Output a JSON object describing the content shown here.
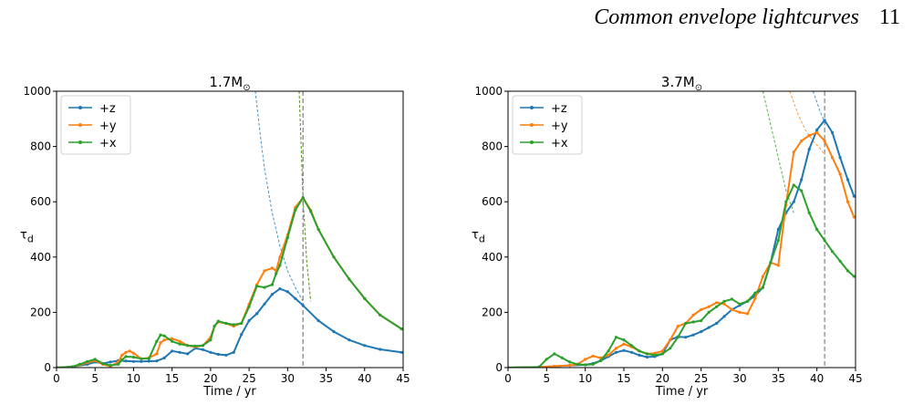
{
  "header": {
    "title": "Common envelope lightcurves",
    "page_number": "11"
  },
  "colors": {
    "+z": "#1f77b4",
    "+y": "#ff7f0e",
    "+x": "#2ca02c",
    "vline": "#808080"
  },
  "chart_data": [
    {
      "type": "line",
      "title": "1.7M",
      "title_subscript": "⊙",
      "xlabel": "Time / yr",
      "ylabel": "τ",
      "ylabel_subscript": "d",
      "xlim": [
        0,
        45
      ],
      "ylim": [
        0,
        1000
      ],
      "xticks": [
        0,
        5,
        10,
        15,
        20,
        25,
        30,
        35,
        40,
        45
      ],
      "yticks": [
        0,
        200,
        400,
        600,
        800,
        1000
      ],
      "legend": "top-left",
      "vline_x": 32,
      "series": [
        {
          "name": "+z",
          "x": [
            0,
            2,
            4,
            5,
            6,
            7,
            8,
            9,
            10,
            11,
            12,
            13,
            14,
            15,
            16,
            17,
            18,
            19,
            20,
            21,
            22,
            23,
            24,
            25,
            26,
            27,
            28,
            29,
            30,
            31,
            32,
            34,
            36,
            38,
            40,
            42,
            44.8
          ],
          "y": [
            0,
            3,
            12,
            20,
            15,
            20,
            25,
            24,
            22,
            22,
            23,
            24,
            35,
            60,
            55,
            50,
            70,
            65,
            55,
            48,
            45,
            55,
            120,
            170,
            195,
            230,
            265,
            285,
            275,
            250,
            225,
            170,
            130,
            100,
            80,
            66,
            55
          ]
        },
        {
          "name": "+y",
          "x": [
            0,
            2,
            3,
            4,
            5,
            6,
            7,
            8,
            8.5,
            9,
            9.5,
            10,
            11,
            12,
            13,
            13.5,
            14,
            15,
            16,
            17,
            18,
            19,
            20,
            20.5,
            21,
            22,
            23,
            24,
            25,
            26,
            27,
            28,
            28.5,
            29,
            30,
            31,
            32,
            33,
            34,
            36,
            38,
            40,
            42,
            44.8
          ],
          "y": [
            0,
            3,
            10,
            18,
            25,
            12,
            5,
            20,
            45,
            55,
            60,
            52,
            32,
            35,
            50,
            90,
            100,
            105,
            95,
            80,
            75,
            80,
            110,
            150,
            165,
            160,
            150,
            160,
            230,
            300,
            350,
            360,
            350,
            400,
            480,
            580,
            615,
            570,
            500,
            400,
            320,
            250,
            190,
            140
          ]
        },
        {
          "name": "+x",
          "x": [
            0,
            2,
            3,
            4,
            5,
            6,
            7,
            8,
            8.5,
            9,
            10,
            11,
            12,
            13,
            13.5,
            14,
            15,
            16,
            17,
            18,
            19,
            20,
            20.5,
            21,
            22,
            23,
            24,
            25,
            26,
            27,
            28,
            28.5,
            29,
            30,
            31,
            32,
            33,
            34,
            36,
            38,
            40,
            42,
            44.8
          ],
          "y": [
            0,
            3,
            12,
            22,
            30,
            15,
            8,
            12,
            28,
            40,
            38,
            32,
            33,
            95,
            118,
            115,
            95,
            85,
            80,
            78,
            80,
            100,
            150,
            168,
            160,
            155,
            160,
            220,
            295,
            290,
            300,
            340,
            370,
            470,
            570,
            615,
            565,
            500,
            400,
            320,
            250,
            190,
            140
          ]
        }
      ],
      "dashed_curves": [
        {
          "name": "+z",
          "x": [
            25.8,
            26.5,
            27,
            28,
            29,
            30,
            31,
            32
          ],
          "y": [
            1000,
            830,
            720,
            560,
            440,
            350,
            290,
            240
          ]
        },
        {
          "name": "+y",
          "x": [
            31.5,
            32,
            32.5,
            33
          ],
          "y": [
            1000,
            615,
            380,
            240
          ]
        },
        {
          "name": "+x",
          "x": [
            31.5,
            32,
            32.5,
            33
          ],
          "y": [
            1000,
            615,
            380,
            240
          ]
        }
      ]
    },
    {
      "type": "line",
      "title": "3.7M",
      "title_subscript": "⊙",
      "xlabel": "Time / yr",
      "ylabel": "τ",
      "ylabel_subscript": "d",
      "xlim": [
        0,
        45
      ],
      "ylim": [
        0,
        1000
      ],
      "xticks": [
        0,
        5,
        10,
        15,
        20,
        25,
        30,
        35,
        40,
        45
      ],
      "yticks": [
        0,
        200,
        400,
        600,
        800,
        1000
      ],
      "legend": "top-left",
      "vline_x": 41,
      "series": [
        {
          "name": "+z",
          "x": [
            0,
            4,
            6,
            8,
            10,
            11,
            12,
            13,
            14,
            15,
            16,
            17,
            18,
            19,
            20,
            21,
            22,
            23,
            24,
            25,
            26,
            27,
            28,
            29,
            30,
            31,
            32,
            33,
            34,
            35,
            36,
            37,
            38,
            39,
            40,
            41,
            42,
            43,
            44,
            44.8
          ],
          "y": [
            0,
            2,
            5,
            8,
            10,
            15,
            25,
            40,
            55,
            62,
            55,
            45,
            38,
            40,
            50,
            100,
            112,
            110,
            118,
            130,
            145,
            160,
            185,
            210,
            225,
            240,
            260,
            290,
            380,
            500,
            560,
            600,
            680,
            790,
            860,
            895,
            850,
            760,
            680,
            620
          ]
        },
        {
          "name": "+y",
          "x": [
            0,
            4,
            6,
            8,
            9,
            10,
            11,
            12,
            13,
            14,
            15,
            16,
            17,
            18,
            19,
            20,
            21,
            22,
            23,
            24,
            25,
            26,
            27,
            28,
            29,
            30,
            31,
            32,
            33,
            34,
            35,
            36,
            37,
            38,
            39,
            40,
            41,
            42,
            43,
            44,
            44.8
          ],
          "y": [
            0,
            2,
            5,
            8,
            12,
            30,
            42,
            35,
            45,
            70,
            85,
            75,
            60,
            50,
            52,
            60,
            100,
            150,
            160,
            190,
            210,
            220,
            235,
            230,
            210,
            200,
            195,
            250,
            330,
            380,
            370,
            590,
            780,
            820,
            840,
            850,
            820,
            760,
            700,
            600,
            545
          ]
        },
        {
          "name": "+x",
          "x": [
            0,
            4,
            5,
            6,
            7,
            8,
            9,
            10,
            11,
            12,
            13,
            14,
            15,
            16,
            17,
            18,
            19,
            20,
            21,
            22,
            23,
            24,
            25,
            26,
            27,
            28,
            29,
            30,
            31,
            32,
            33,
            34,
            35,
            36,
            37,
            38,
            39,
            40,
            41,
            42,
            43,
            44,
            44.8
          ],
          "y": [
            0,
            2,
            30,
            50,
            35,
            20,
            12,
            10,
            12,
            25,
            60,
            110,
            100,
            80,
            60,
            50,
            45,
            50,
            70,
            110,
            160,
            165,
            170,
            200,
            220,
            240,
            248,
            230,
            240,
            270,
            290,
            380,
            460,
            600,
            660,
            640,
            560,
            500,
            460,
            420,
            385,
            350,
            330
          ]
        }
      ],
      "dashed_curves": [
        {
          "name": "+z",
          "x": [
            39.5,
            40,
            40.5,
            41
          ],
          "y": [
            1000,
            960,
            920,
            890
          ]
        },
        {
          "name": "+y",
          "x": [
            36.5,
            37.5,
            38.5,
            39.5,
            40.5,
            41
          ],
          "y": [
            1000,
            920,
            860,
            820,
            790,
            770
          ]
        },
        {
          "name": "+x",
          "x": [
            33,
            34,
            35,
            36,
            37
          ],
          "y": [
            1000,
            880,
            760,
            640,
            560
          ]
        }
      ]
    }
  ]
}
